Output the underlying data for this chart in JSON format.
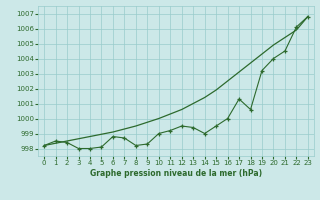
{
  "xlabel": "Graphe pression niveau de la mer (hPa)",
  "x_ticks": [
    0,
    1,
    2,
    3,
    4,
    5,
    6,
    7,
    8,
    9,
    10,
    11,
    12,
    13,
    14,
    15,
    16,
    17,
    18,
    19,
    20,
    21,
    22,
    23
  ],
  "ylim": [
    997.5,
    1007.5
  ],
  "yticks": [
    998,
    999,
    1000,
    1001,
    1002,
    1003,
    1004,
    1005,
    1006,
    1007
  ],
  "bg_color": "#cce8e8",
  "grid_color": "#99cccc",
  "line_color": "#2d6a2d",
  "smooth_series": [
    998.2,
    998.35,
    998.5,
    998.65,
    998.8,
    998.95,
    999.1,
    999.3,
    999.5,
    999.75,
    1000.0,
    1000.3,
    1000.6,
    1001.0,
    1001.4,
    1001.9,
    1002.5,
    1003.1,
    1003.7,
    1004.3,
    1004.9,
    1005.4,
    1005.9,
    1006.8
  ],
  "actual_series": [
    998.2,
    998.5,
    998.4,
    998.0,
    998.0,
    998.1,
    998.8,
    998.7,
    998.2,
    998.3,
    999.0,
    999.2,
    999.5,
    999.4,
    999.0,
    999.5,
    1000.0,
    1001.3,
    1000.6,
    1003.2,
    1004.0,
    1004.5,
    1006.1,
    1006.8
  ]
}
